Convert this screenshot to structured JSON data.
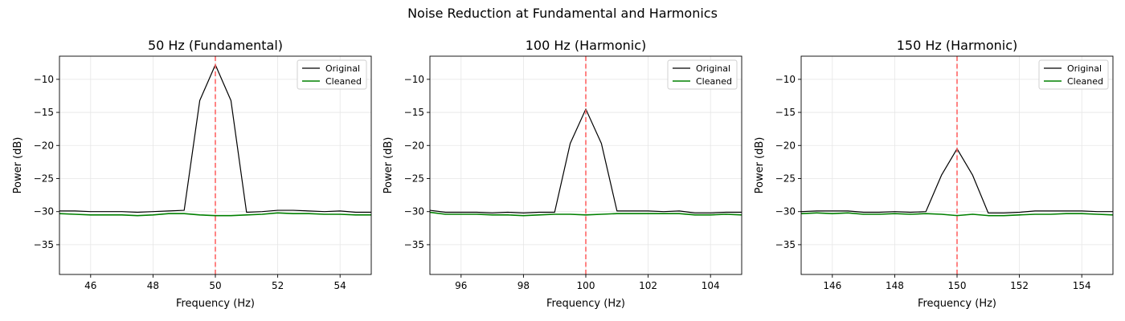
{
  "figure": {
    "title": "Noise Reduction at Fundamental and Harmonics"
  },
  "colors": {
    "original": "#000000",
    "cleaned": "#008000",
    "marker": "#ff6666",
    "grid": "#e6e6e6"
  },
  "chart_data": [
    {
      "type": "line",
      "title": "50 Hz (Fundamental)",
      "xlabel": "Frequency (Hz)",
      "ylabel": "Power (dB)",
      "xlim": [
        45,
        55
      ],
      "ylim": [
        -39.5,
        -6.5
      ],
      "xticks": [
        46,
        48,
        50,
        52,
        54
      ],
      "yticks": [
        -35,
        -30,
        -25,
        -20,
        -15,
        -10
      ],
      "grid": true,
      "legend": "top-right",
      "marker_line": 50,
      "series": [
        {
          "name": "Original",
          "key": "original",
          "x": [
            45,
            45.5,
            46,
            46.5,
            47,
            47.5,
            48,
            48.5,
            49,
            49.5,
            50,
            50.5,
            51,
            51.5,
            52,
            52.5,
            53,
            53.5,
            54,
            54.5,
            55
          ],
          "y": [
            -29.9,
            -29.9,
            -30.0,
            -30.0,
            -30.0,
            -30.1,
            -30.0,
            -29.9,
            -29.8,
            -13.2,
            -7.8,
            -13.2,
            -30.1,
            -30.0,
            -29.8,
            -29.8,
            -29.9,
            -30.0,
            -29.9,
            -30.1,
            -30.1
          ]
        },
        {
          "name": "Cleaned",
          "key": "cleaned",
          "x": [
            45,
            45.5,
            46,
            46.5,
            47,
            47.5,
            48,
            48.5,
            49,
            49.5,
            50,
            50.5,
            51,
            51.5,
            52,
            52.5,
            53,
            53.5,
            54,
            54.5,
            55
          ],
          "y": [
            -30.3,
            -30.4,
            -30.5,
            -30.5,
            -30.5,
            -30.6,
            -30.5,
            -30.3,
            -30.3,
            -30.5,
            -30.6,
            -30.6,
            -30.5,
            -30.4,
            -30.2,
            -30.3,
            -30.3,
            -30.4,
            -30.4,
            -30.5,
            -30.5
          ]
        }
      ]
    },
    {
      "type": "line",
      "title": "100 Hz (Harmonic)",
      "xlabel": "Frequency (Hz)",
      "ylabel": "Power (dB)",
      "xlim": [
        95,
        105
      ],
      "ylim": [
        -39.5,
        -6.5
      ],
      "xticks": [
        96,
        98,
        100,
        102,
        104
      ],
      "yticks": [
        -35,
        -30,
        -25,
        -20,
        -15,
        -10
      ],
      "grid": true,
      "legend": "top-right",
      "marker_line": 100,
      "series": [
        {
          "name": "Original",
          "key": "original",
          "x": [
            95,
            95.5,
            96,
            96.5,
            97,
            97.5,
            98,
            98.5,
            99,
            99.5,
            100,
            100.5,
            101,
            101.5,
            102,
            102.5,
            103,
            103.5,
            104,
            104.5,
            105
          ],
          "y": [
            -29.8,
            -30.1,
            -30.1,
            -30.1,
            -30.2,
            -30.1,
            -30.2,
            -30.1,
            -30.1,
            -19.7,
            -14.5,
            -19.7,
            -29.9,
            -29.9,
            -29.9,
            -30.0,
            -29.9,
            -30.2,
            -30.2,
            -30.1,
            -30.1
          ]
        },
        {
          "name": "Cleaned",
          "key": "cleaned",
          "x": [
            95,
            95.5,
            96,
            96.5,
            97,
            97.5,
            98,
            98.5,
            99,
            99.5,
            100,
            100.5,
            101,
            101.5,
            102,
            102.5,
            103,
            103.5,
            104,
            104.5,
            105
          ],
          "y": [
            -30.1,
            -30.4,
            -30.4,
            -30.4,
            -30.5,
            -30.5,
            -30.6,
            -30.5,
            -30.4,
            -30.4,
            -30.5,
            -30.4,
            -30.3,
            -30.3,
            -30.3,
            -30.3,
            -30.3,
            -30.5,
            -30.5,
            -30.4,
            -30.5
          ]
        }
      ]
    },
    {
      "type": "line",
      "title": "150 Hz (Harmonic)",
      "xlabel": "Frequency (Hz)",
      "ylabel": "Power (dB)",
      "xlim": [
        145,
        155
      ],
      "ylim": [
        -39.5,
        -6.5
      ],
      "xticks": [
        146,
        148,
        150,
        152,
        154
      ],
      "yticks": [
        -35,
        -30,
        -25,
        -20,
        -15,
        -10
      ],
      "grid": true,
      "legend": "top-right",
      "marker_line": 150,
      "series": [
        {
          "name": "Original",
          "key": "original",
          "x": [
            145,
            145.5,
            146,
            146.5,
            147,
            147.5,
            148,
            148.5,
            149,
            149.5,
            150,
            150.5,
            151,
            151.5,
            152,
            152.5,
            153,
            153.5,
            154,
            154.5,
            155
          ],
          "y": [
            -30.0,
            -29.9,
            -29.9,
            -29.9,
            -30.1,
            -30.1,
            -30.0,
            -30.1,
            -30.0,
            -24.5,
            -20.5,
            -24.5,
            -30.2,
            -30.2,
            -30.1,
            -29.9,
            -29.9,
            -29.9,
            -29.9,
            -30.0,
            -30.0
          ]
        },
        {
          "name": "Cleaned",
          "key": "cleaned",
          "x": [
            145,
            145.5,
            146,
            146.5,
            147,
            147.5,
            148,
            148.5,
            149,
            149.5,
            150,
            150.5,
            151,
            151.5,
            152,
            152.5,
            153,
            153.5,
            154,
            154.5,
            155
          ],
          "y": [
            -30.3,
            -30.2,
            -30.3,
            -30.2,
            -30.4,
            -30.4,
            -30.3,
            -30.4,
            -30.3,
            -30.4,
            -30.6,
            -30.4,
            -30.6,
            -30.6,
            -30.5,
            -30.4,
            -30.4,
            -30.3,
            -30.3,
            -30.4,
            -30.5
          ]
        }
      ]
    }
  ]
}
